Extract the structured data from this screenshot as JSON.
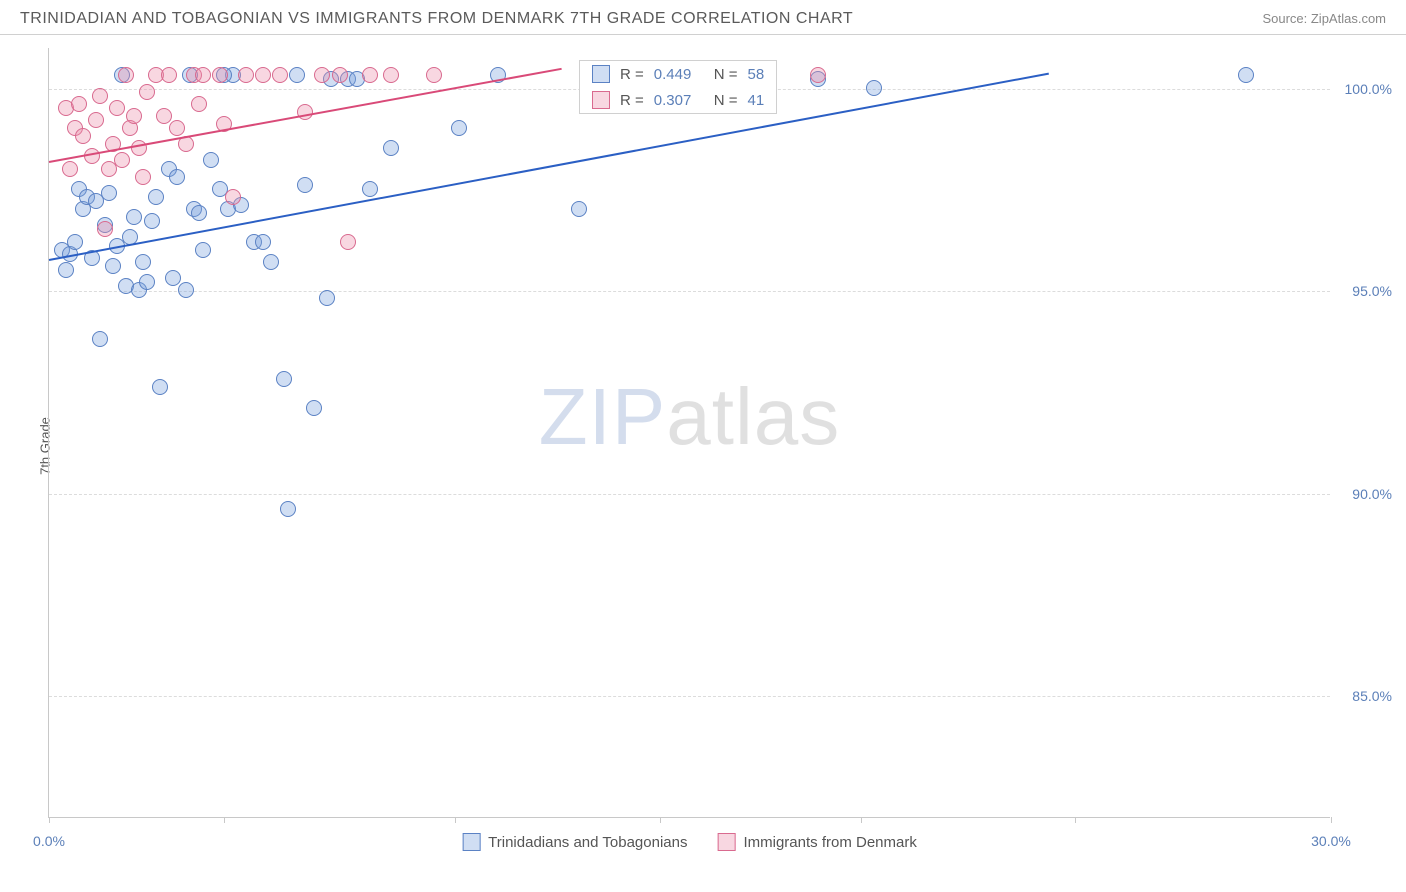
{
  "header": {
    "title": "TRINIDADIAN AND TOBAGONIAN VS IMMIGRANTS FROM DENMARK 7TH GRADE CORRELATION CHART",
    "source": "Source: ZipAtlas.com"
  },
  "chart": {
    "type": "scatter",
    "ylabel": "7th Grade",
    "xlim": [
      0,
      30
    ],
    "ylim": [
      82,
      101
    ],
    "xticks": [
      0,
      4.1,
      9.5,
      14.3,
      19.0,
      24.0,
      30
    ],
    "xtick_labels": {
      "0": "0.0%",
      "30": "30.0%"
    },
    "yticks": [
      85,
      90,
      95,
      100
    ],
    "ytick_labels": [
      "85.0%",
      "90.0%",
      "95.0%",
      "100.0%"
    ],
    "background_color": "#ffffff",
    "grid_color": "#dcdcdc",
    "axis_color": "#c8c8c8",
    "watermark": {
      "part1": "ZIP",
      "part2": "atlas"
    },
    "series": [
      {
        "name": "Trinidadians and Tobagonians",
        "fill": "rgba(120,160,220,0.35)",
        "stroke": "#5b82c4",
        "trend_color": "#2b5fc4",
        "R": "0.449",
        "N": "58",
        "trendline": {
          "x1": 0,
          "y1": 95.8,
          "x2": 23.4,
          "y2": 100.4
        },
        "points": [
          [
            0.3,
            96.0
          ],
          [
            0.5,
            95.9
          ],
          [
            0.6,
            96.2
          ],
          [
            0.7,
            97.5
          ],
          [
            0.8,
            97.0
          ],
          [
            0.9,
            97.3
          ],
          [
            1.0,
            95.8
          ],
          [
            1.1,
            97.2
          ],
          [
            1.2,
            93.8
          ],
          [
            1.3,
            96.6
          ],
          [
            1.4,
            97.4
          ],
          [
            1.5,
            95.6
          ],
          [
            1.6,
            96.1
          ],
          [
            1.7,
            100.3
          ],
          [
            1.8,
            95.1
          ],
          [
            2.0,
            96.8
          ],
          [
            2.1,
            95.0
          ],
          [
            2.2,
            95.7
          ],
          [
            2.4,
            96.7
          ],
          [
            2.5,
            97.3
          ],
          [
            2.6,
            92.6
          ],
          [
            2.8,
            98.0
          ],
          [
            2.9,
            95.3
          ],
          [
            3.0,
            97.8
          ],
          [
            3.2,
            95.0
          ],
          [
            3.3,
            100.3
          ],
          [
            3.4,
            97.0
          ],
          [
            3.5,
            96.9
          ],
          [
            3.8,
            98.2
          ],
          [
            4.0,
            97.5
          ],
          [
            4.2,
            97.0
          ],
          [
            4.3,
            100.3
          ],
          [
            4.5,
            97.1
          ],
          [
            4.8,
            96.2
          ],
          [
            5.0,
            96.2
          ],
          [
            5.2,
            95.7
          ],
          [
            5.5,
            92.8
          ],
          [
            5.6,
            89.6
          ],
          [
            5.8,
            100.3
          ],
          [
            6.0,
            97.6
          ],
          [
            6.2,
            92.1
          ],
          [
            6.5,
            94.8
          ],
          [
            6.6,
            100.2
          ],
          [
            7.0,
            100.2
          ],
          [
            7.2,
            100.2
          ],
          [
            7.5,
            97.5
          ],
          [
            8.0,
            98.5
          ],
          [
            9.6,
            99.0
          ],
          [
            10.5,
            100.3
          ],
          [
            12.4,
            97.0
          ],
          [
            18.0,
            100.2
          ],
          [
            19.3,
            100.0
          ],
          [
            28.0,
            100.3
          ],
          [
            3.6,
            96.0
          ],
          [
            4.1,
            100.3
          ],
          [
            1.9,
            96.3
          ],
          [
            2.3,
            95.2
          ],
          [
            0.4,
            95.5
          ]
        ]
      },
      {
        "name": "Immigrants from Denmark",
        "fill": "rgba(235,140,170,0.35)",
        "stroke": "#d96a8f",
        "trend_color": "#d94a78",
        "R": "0.307",
        "N": "41",
        "trendline": {
          "x1": 0,
          "y1": 98.2,
          "x2": 12.0,
          "y2": 100.5
        },
        "points": [
          [
            0.4,
            99.5
          ],
          [
            0.5,
            98.0
          ],
          [
            0.6,
            99.0
          ],
          [
            0.7,
            99.6
          ],
          [
            0.8,
            98.8
          ],
          [
            1.0,
            98.3
          ],
          [
            1.1,
            99.2
          ],
          [
            1.2,
            99.8
          ],
          [
            1.3,
            96.5
          ],
          [
            1.4,
            98.0
          ],
          [
            1.5,
            98.6
          ],
          [
            1.6,
            99.5
          ],
          [
            1.7,
            98.2
          ],
          [
            1.8,
            100.3
          ],
          [
            1.9,
            99.0
          ],
          [
            2.0,
            99.3
          ],
          [
            2.1,
            98.5
          ],
          [
            2.2,
            97.8
          ],
          [
            2.3,
            99.9
          ],
          [
            2.5,
            100.3
          ],
          [
            2.7,
            99.3
          ],
          [
            2.8,
            100.3
          ],
          [
            3.0,
            99.0
          ],
          [
            3.2,
            98.6
          ],
          [
            3.4,
            100.3
          ],
          [
            3.5,
            99.6
          ],
          [
            3.6,
            100.3
          ],
          [
            4.0,
            100.3
          ],
          [
            4.1,
            99.1
          ],
          [
            4.3,
            97.3
          ],
          [
            4.6,
            100.3
          ],
          [
            5.0,
            100.3
          ],
          [
            5.4,
            100.3
          ],
          [
            6.0,
            99.4
          ],
          [
            6.4,
            100.3
          ],
          [
            6.8,
            100.3
          ],
          [
            7.0,
            96.2
          ],
          [
            7.5,
            100.3
          ],
          [
            8.0,
            100.3
          ],
          [
            9.0,
            100.3
          ],
          [
            18.0,
            100.3
          ]
        ]
      }
    ],
    "legend_top": {
      "rows": [
        {
          "swatch_fill": "rgba(120,160,220,0.35)",
          "swatch_stroke": "#5b82c4",
          "r_label": "R =",
          "r_val": "0.449",
          "n_label": "N =",
          "n_val": "58"
        },
        {
          "swatch_fill": "rgba(235,140,170,0.35)",
          "swatch_stroke": "#d96a8f",
          "r_label": "R =",
          "r_val": "0.307",
          "n_label": "N =",
          "n_val": "41"
        }
      ]
    },
    "legend_bottom": [
      {
        "swatch_fill": "rgba(120,160,220,0.35)",
        "swatch_stroke": "#5b82c4",
        "label": "Trinidadians and Tobagonians"
      },
      {
        "swatch_fill": "rgba(235,140,170,0.35)",
        "swatch_stroke": "#d96a8f",
        "label": "Immigrants from Denmark"
      }
    ]
  }
}
